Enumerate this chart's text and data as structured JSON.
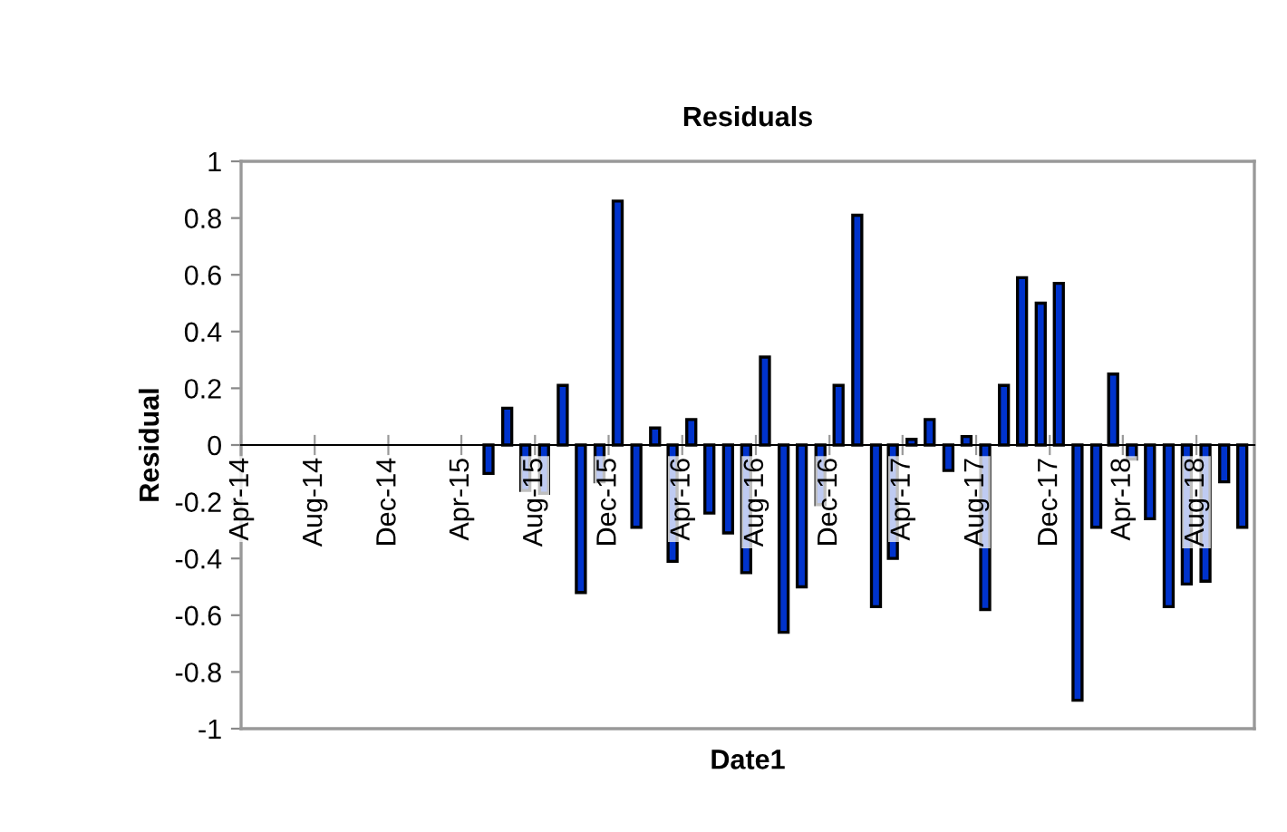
{
  "chart_data": {
    "type": "bar",
    "title": "Residuals",
    "xlabel": "Date1",
    "ylabel": "Residual",
    "x": [
      "2015-05-16",
      "2015-06-16",
      "2015-07-16",
      "2015-08-16",
      "2015-09-16",
      "2015-10-16",
      "2015-11-16",
      "2015-12-16",
      "2016-01-16",
      "2016-02-16",
      "2016-03-16",
      "2016-04-16",
      "2016-05-16",
      "2016-06-16",
      "2016-07-16",
      "2016-08-16",
      "2016-09-16",
      "2016-10-16",
      "2016-11-16",
      "2016-12-16",
      "2017-01-16",
      "2017-02-16",
      "2017-03-16",
      "2017-04-16",
      "2017-05-16",
      "2017-06-16",
      "2017-07-16",
      "2017-08-16",
      "2017-09-16",
      "2017-10-16",
      "2017-11-16",
      "2017-12-16",
      "2018-01-16",
      "2018-02-16",
      "2018-03-16",
      "2018-04-16",
      "2018-05-16",
      "2018-06-16",
      "2018-07-16",
      "2018-08-16",
      "2018-09-16",
      "2018-10-16"
    ],
    "series": [
      {
        "color": "#0033cc",
        "values": [
          -0.1,
          0.13,
          -0.16,
          -0.17,
          0.21,
          -0.52,
          -0.13,
          0.86,
          -0.29,
          0.06,
          -0.41,
          0.09,
          -0.24,
          -0.31,
          -0.45,
          0.31,
          -0.66,
          -0.5,
          -0.21,
          0.21,
          0.81,
          -0.57,
          -0.4,
          0.02,
          0.09,
          -0.09,
          0.03,
          -0.58,
          0.21,
          0.59,
          0.5,
          0.57,
          -0.9,
          -0.29,
          0.25,
          -0.05,
          -0.26,
          -0.57,
          -0.49,
          -0.48,
          -0.13,
          -0.29
        ]
      }
    ],
    "xlim": [
      "2014-04-01",
      "2018-11-05"
    ],
    "xticks": [
      {
        "value": "2014-04-01",
        "label": "Apr-14"
      },
      {
        "value": "2014-08-01",
        "label": "Aug-14"
      },
      {
        "value": "2014-12-01",
        "label": "Dec-14"
      },
      {
        "value": "2015-04-01",
        "label": "Apr-15"
      },
      {
        "value": "2015-08-01",
        "label": "Aug-15"
      },
      {
        "value": "2015-12-01",
        "label": "Dec-15"
      },
      {
        "value": "2016-04-01",
        "label": "Apr-16"
      },
      {
        "value": "2016-08-01",
        "label": "Aug-16"
      },
      {
        "value": "2016-12-01",
        "label": "Dec-16"
      },
      {
        "value": "2017-04-01",
        "label": "Apr-17"
      },
      {
        "value": "2017-08-01",
        "label": "Aug-17"
      },
      {
        "value": "2017-12-01",
        "label": "Dec-17"
      },
      {
        "value": "2018-04-01",
        "label": "Apr-18"
      },
      {
        "value": "2018-08-01",
        "label": "Aug-18"
      }
    ],
    "ylim": [
      -1,
      1
    ],
    "yticks": [
      -1,
      -0.8,
      -0.6,
      -0.4,
      -0.2,
      0,
      0.2,
      0.4,
      0.6,
      0.8,
      1
    ],
    "grid": false,
    "legend": false
  }
}
